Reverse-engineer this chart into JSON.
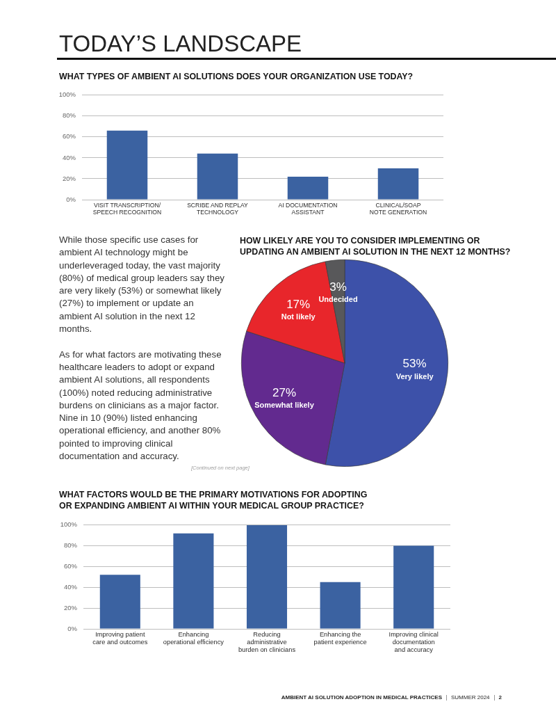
{
  "chart_data": [
    {
      "type": "other",
      "title": "TODAY’S LANDSCAPE"
    },
    {
      "type": "bar",
      "title": "WHAT TYPES OF AMBIENT AI SOLUTIONS DOES YOUR ORGANIZATION USE TODAY?",
      "categories": [
        "VISIT TRANSCRIPTION/ SPEECH RECOGNITION",
        "SCRIBE AND REPLAY TECHNOLOGY",
        "AI DOCUMENTATION ASSISTANT",
        "CLINICAL/SOAP NOTE GENERATION"
      ],
      "values": [
        66,
        44,
        22,
        30
      ],
      "color": "#3b62a1",
      "ylim": [
        0,
        100
      ],
      "yticks": [
        {
          "value": 0,
          "label": "0%"
        },
        {
          "value": 20,
          "label": "20%"
        },
        {
          "value": 40,
          "label": "40%"
        },
        {
          "value": 60,
          "label": "60%"
        },
        {
          "value": 80,
          "label": "80%"
        },
        {
          "value": 100,
          "label": "100%"
        }
      ],
      "grid": "y"
    },
    {
      "type": "other",
      "annotations": [
        "While those specific use cases for ambient AI technology might be underleveraged today, the vast majority (80%) of medical group leaders say they are very likely (53%) or somewhat likely (27%) to implement or update an ambient AI solution in the next 12 months.",
        "As for what factors are motivating these healthcare leaders to adopt or expand ambient AI solutions, all respondents (100%) noted reducing administrative burdens on clinicians as a major factor. Nine in 10 (90%) listed enhancing operational efficiency, and another 80% pointed to improving clinical documentation and accuracy.",
        "[Continued on next page]"
      ]
    },
    {
      "type": "pie",
      "title": "HOW LIKELY ARE YOU TO CONSIDER IMPLEMENTING OR UPDATING AN AMBIENT AI SOLUTION IN THE NEXT 12 MONTHS?",
      "categories": [
        "Very likely",
        "Somewhat likely",
        "Not likely",
        "Undecided"
      ],
      "values": [
        53,
        27,
        17,
        3
      ],
      "colors": [
        "#3d51a9",
        "#622a8f",
        "#e8262b",
        "#58585a"
      ],
      "value_labels": [
        "53%",
        "27%",
        "17%",
        "3%"
      ]
    },
    {
      "type": "bar",
      "title": "WHAT FACTORS WOULD BE THE PRIMARY MOTIVATIONS FOR ADOPTING OR EXPANDING AMBIENT AI WITHIN YOUR MEDICAL GROUP PRACTICE?",
      "categories": [
        "Improving patient care and outcomes",
        "Enhancing operational efficiency",
        "Reducing administrative burden on clinicians",
        "Enhancing the patient experience",
        "Improving clinical documentation and accuracy"
      ],
      "values": [
        52,
        92,
        100,
        45,
        80
      ],
      "color": "#3b62a1",
      "ylim": [
        0,
        100
      ],
      "yticks": [
        {
          "value": 0,
          "label": "0%"
        },
        {
          "value": 20,
          "label": "20%"
        },
        {
          "value": 40,
          "label": "40%"
        },
        {
          "value": 60,
          "label": "60%"
        },
        {
          "value": 80,
          "label": "80%"
        },
        {
          "value": 100,
          "label": "100%"
        }
      ],
      "grid": "y"
    },
    {
      "type": "other",
      "annotations": [
        "AMBIENT AI SOLUTION ADOPTION IN MEDICAL PRACTICES",
        "SUMMER 2024",
        "2"
      ]
    }
  ]
}
